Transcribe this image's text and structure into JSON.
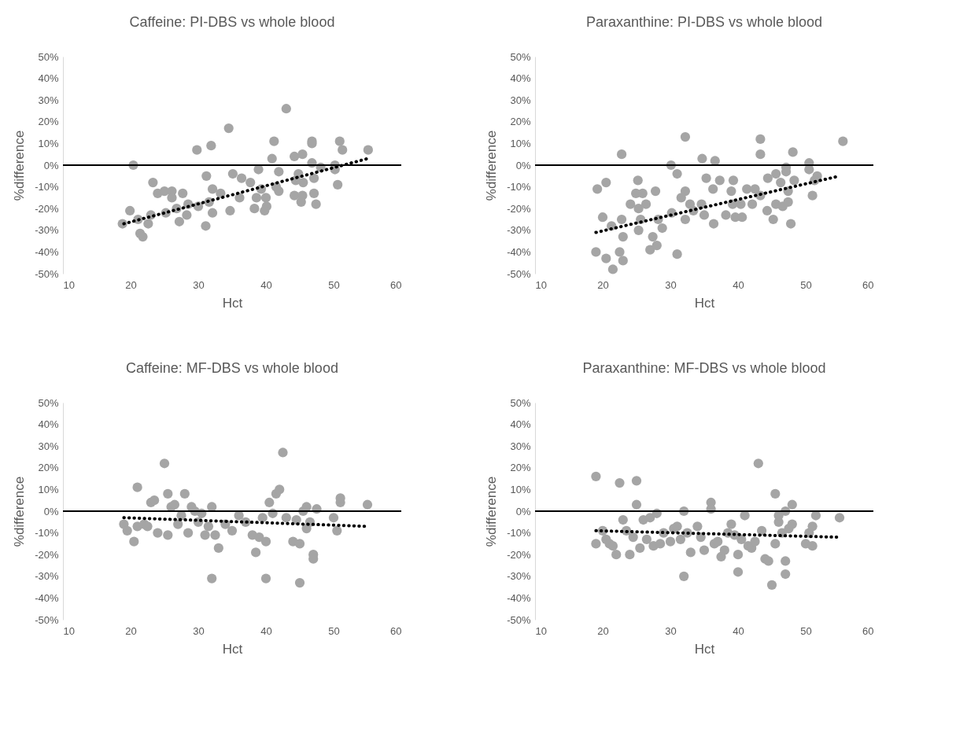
{
  "chart_data": [
    {
      "type": "scatter",
      "title": "Caffeine: PI-DBS vs whole blood",
      "xlabel": "Hct",
      "ylabel": "%difference",
      "xlim": [
        10,
        60
      ],
      "xticks": [
        10,
        20,
        30,
        40,
        50,
        60
      ],
      "ylim": [
        -50,
        50
      ],
      "yticks": [
        {
          "value": 50,
          "label": "50%"
        },
        {
          "value": 40,
          "label": "40%"
        },
        {
          "value": 30,
          "label": "30%"
        },
        {
          "value": 20,
          "label": "20%"
        },
        {
          "value": 10,
          "label": "10%"
        },
        {
          "value": 0,
          "label": "0%"
        },
        {
          "value": -10,
          "label": "-10%"
        },
        {
          "value": -20,
          "label": "-20%"
        },
        {
          "value": -30,
          "label": "-30%"
        },
        {
          "value": -40,
          "label": "-40%"
        },
        {
          "value": -50,
          "label": "-50%"
        }
      ],
      "grid": false,
      "ref_lines": [
        {
          "axis": "y",
          "value": 0,
          "color": "#000000"
        }
      ],
      "series": [
        {
          "color": "#a5a5a5",
          "marker": "circle",
          "x": [
            20.4,
            18.8,
            19.9,
            21.1,
            21.4,
            21.8,
            22.6,
            23,
            23.3,
            24,
            25,
            26.1,
            25.2,
            26.1,
            26.8,
            27.2,
            28.3,
            27.7,
            28.5,
            30,
            29.8,
            31.2,
            31.9,
            31.1,
            31.6,
            32.1,
            32.1,
            33.3,
            34.5,
            34.7,
            35.1,
            36.1,
            36.4,
            37.7,
            38.9,
            38.6,
            38.3,
            39.3,
            40,
            40.1,
            39.8,
            41.2,
            40.9,
            41.9,
            41.5,
            41.9,
            43,
            44.2,
            45.4,
            44.2,
            44.8,
            45.4,
            45.2,
            44.4,
            45.5,
            46.8,
            46.8,
            46.8,
            47.1,
            47.1,
            47.4,
            48.1,
            50.2,
            50.2,
            50.6,
            50.9,
            51.3,
            55.1
          ],
          "values": [
            0,
            -27,
            -21,
            -25,
            -31.5,
            -33,
            -27,
            -23,
            -8,
            -13,
            -12,
            -12,
            -22,
            -15,
            -20,
            -26,
            -23,
            -13,
            -18,
            -19,
            7,
            -5,
            9,
            -28,
            -17,
            -22,
            -11,
            -13,
            17,
            -21,
            -4,
            -15,
            -6,
            -8,
            -2,
            -15,
            -20,
            -11,
            -15,
            -19,
            -21,
            11,
            3,
            -3,
            -10,
            -12,
            26,
            4,
            5,
            -14,
            -4,
            -14,
            -17,
            -7,
            -8,
            11,
            10,
            1,
            -6,
            -13,
            -18,
            -1,
            -2,
            0,
            -9,
            11,
            7,
            7
          ]
        },
        {
          "type": "line",
          "color": "#000000",
          "line_style": "dotted",
          "x": [
            19,
            55
          ],
          "values": [
            -27,
            3
          ]
        }
      ]
    },
    {
      "type": "scatter",
      "title": "Paraxanthine: PI-DBS vs whole blood",
      "xlabel": "Hct",
      "ylabel": "%difference",
      "xlim": [
        10,
        60
      ],
      "xticks": [
        10,
        20,
        30,
        40,
        50,
        60
      ],
      "ylim": [
        -50,
        50
      ],
      "yticks": [
        {
          "value": 50,
          "label": "50%"
        },
        {
          "value": 40,
          "label": "40%"
        },
        {
          "value": 30,
          "label": "30%"
        },
        {
          "value": 20,
          "label": "20%"
        },
        {
          "value": 10,
          "label": "10%"
        },
        {
          "value": 0,
          "label": "0%"
        },
        {
          "value": -10,
          "label": "-10%"
        },
        {
          "value": -20,
          "label": "-20%"
        },
        {
          "value": -30,
          "label": "-30%"
        },
        {
          "value": -40,
          "label": "-40%"
        },
        {
          "value": -50,
          "label": "-50%"
        }
      ],
      "grid": false,
      "ref_lines": [
        {
          "axis": "y",
          "value": 0,
          "color": "#000000"
        }
      ],
      "series": [
        {
          "color": "#a5a5a5",
          "marker": "circle",
          "x": [
            19.2,
            20.5,
            20,
            21.3,
            22.8,
            22.8,
            23,
            24.1,
            25.2,
            24.9,
            25.9,
            26.4,
            25.3,
            25.6,
            25.3,
            27.8,
            28.2,
            28.8,
            27.4,
            30.1,
            31,
            32.2,
            32.2,
            31.6,
            30.2,
            32.2,
            32.9,
            33.4,
            34.7,
            34.6,
            35,
            35.3,
            36.6,
            36.4,
            36.3,
            37.3,
            38.2,
            39,
            39.2,
            39.3,
            39.6,
            40.6,
            40.4,
            41.3,
            42.5,
            42.1,
            43.3,
            43.3,
            43.3,
            44.4,
            44.3,
            45.2,
            45.6,
            46.3,
            45.6,
            46.6,
            47.4,
            47.4,
            47.1,
            47.1,
            47.8,
            48.1,
            48.3,
            50.5,
            50.5,
            51,
            51.7,
            51.3,
            55.5,
            19,
            20.5,
            21.5,
            22.5,
            23,
            27,
            28,
            31
          ],
          "values": [
            -11,
            -8,
            -24,
            -28,
            5,
            -25,
            -33,
            -18,
            -7,
            -13,
            -13,
            -18,
            -20,
            -25,
            -30,
            -12,
            -25,
            -29,
            -33,
            0,
            -4,
            13,
            -12,
            -15,
            -22,
            -25,
            -18,
            -21,
            3,
            -18,
            -23,
            -6,
            2,
            -27,
            -11,
            -7,
            -23,
            -12,
            -18,
            -7,
            -24,
            -24,
            -18,
            -11,
            -11,
            -18,
            -14,
            12,
            5,
            -6,
            -21,
            -25,
            -4,
            -8,
            -18,
            -19,
            -17,
            -12,
            -1,
            -3,
            -27,
            6,
            -7,
            1,
            -2,
            -14,
            -5,
            -7,
            11,
            -40,
            -43,
            -48,
            -40,
            -44,
            -39,
            -37,
            -41
          ]
        },
        {
          "type": "line",
          "color": "#000000",
          "line_style": "dotted",
          "x": [
            19,
            55
          ],
          "values": [
            -31,
            -5
          ]
        }
      ]
    },
    {
      "type": "scatter",
      "title": "Caffeine: MF-DBS vs whole blood",
      "xlabel": "Hct",
      "ylabel": "%difference",
      "xlim": [
        10,
        60
      ],
      "xticks": [
        10,
        20,
        30,
        40,
        50,
        60
      ],
      "ylim": [
        -50,
        50
      ],
      "yticks": [
        {
          "value": 50,
          "label": "50%"
        },
        {
          "value": 40,
          "label": "40%"
        },
        {
          "value": 30,
          "label": "30%"
        },
        {
          "value": 20,
          "label": "20%"
        },
        {
          "value": 10,
          "label": "10%"
        },
        {
          "value": 0,
          "label": "0%"
        },
        {
          "value": -10,
          "label": "-10%"
        },
        {
          "value": -20,
          "label": "-20%"
        },
        {
          "value": -30,
          "label": "-30%"
        },
        {
          "value": -40,
          "label": "-40%"
        },
        {
          "value": -50,
          "label": "-50%"
        }
      ],
      "grid": false,
      "ref_lines": [
        {
          "axis": "y",
          "value": 0,
          "color": "#000000"
        }
      ],
      "series": [
        {
          "color": "#a5a5a5",
          "marker": "circle",
          "x": [
            19,
            19.5,
            20.5,
            21,
            21,
            22,
            22.5,
            23,
            23.5,
            24,
            25,
            25.5,
            25.5,
            26,
            26.5,
            27,
            27.5,
            28,
            28.5,
            29,
            29.5,
            30,
            30.5,
            31,
            31.5,
            32,
            32,
            32.5,
            33,
            34,
            35,
            36,
            37,
            38,
            38.5,
            39,
            39.5,
            40,
            40,
            40.5,
            41,
            41.5,
            42,
            42.5,
            43,
            44,
            44.5,
            45,
            45,
            45.5,
            46,
            46,
            46.5,
            47,
            47,
            47.5,
            50,
            50.5,
            51,
            51,
            55
          ],
          "values": [
            -6,
            -9,
            -14,
            11,
            -7,
            -6,
            -7,
            4,
            5,
            -10,
            22,
            8,
            -11,
            2,
            3,
            -6,
            -2,
            8,
            -10,
            2,
            0,
            -5,
            -1,
            -11,
            -7,
            -31,
            2,
            -11,
            -17,
            -6,
            -9,
            -2,
            -5,
            -11,
            -19,
            -12,
            -3,
            -31,
            -14,
            4,
            -1,
            8,
            10,
            27,
            -3,
            -14,
            -4,
            -33,
            -15,
            0,
            2,
            -8,
            -5,
            -22,
            -20,
            1,
            -3,
            -9,
            4,
            6,
            3
          ]
        },
        {
          "type": "line",
          "color": "#000000",
          "line_style": "dotted",
          "x": [
            19,
            55
          ],
          "values": [
            -3,
            -7
          ]
        }
      ]
    },
    {
      "type": "scatter",
      "title": "Paraxanthine: MF-DBS vs whole blood",
      "xlabel": "Hct",
      "ylabel": "%difference",
      "xlim": [
        10,
        60
      ],
      "xticks": [
        10,
        20,
        30,
        40,
        50,
        60
      ],
      "ylim": [
        -50,
        50
      ],
      "yticks": [
        {
          "value": 50,
          "label": "50%"
        },
        {
          "value": 40,
          "label": "40%"
        },
        {
          "value": 30,
          "label": "30%"
        },
        {
          "value": 20,
          "label": "20%"
        },
        {
          "value": 10,
          "label": "10%"
        },
        {
          "value": 0,
          "label": "0%"
        },
        {
          "value": -10,
          "label": "-10%"
        },
        {
          "value": -20,
          "label": "-20%"
        },
        {
          "value": -30,
          "label": "-30%"
        },
        {
          "value": -40,
          "label": "-40%"
        },
        {
          "value": -50,
          "label": "-50%"
        }
      ],
      "grid": false,
      "ref_lines": [
        {
          "axis": "y",
          "value": 0,
          "color": "#000000"
        }
      ],
      "series": [
        {
          "color": "#a5a5a5",
          "marker": "circle",
          "x": [
            19,
            19,
            20,
            20.5,
            21,
            21.5,
            22,
            22.5,
            23,
            23.5,
            24,
            24.5,
            25,
            25,
            25.5,
            26,
            26.5,
            27,
            27.5,
            28,
            28.5,
            29,
            30,
            30.5,
            31,
            31.5,
            32,
            32,
            32.5,
            33,
            34,
            34.5,
            35,
            36,
            36,
            36.5,
            37,
            37.5,
            38,
            38.5,
            39,
            39.5,
            40,
            40,
            40.5,
            41,
            41.5,
            42,
            42.5,
            43,
            43.5,
            44,
            44.5,
            45,
            45.5,
            45.5,
            46,
            46,
            46.5,
            47,
            47,
            47,
            47.5,
            48,
            48,
            50,
            50.5,
            51,
            51,
            51.5,
            55
          ],
          "values": [
            16,
            -15,
            -9,
            -13,
            -15,
            -16,
            -20,
            13,
            -4,
            -9,
            -20,
            -12,
            14,
            3,
            -17,
            -4,
            -13,
            -3,
            -16,
            -1,
            -15,
            -10,
            -14,
            -8,
            -7,
            -13,
            0,
            -30,
            -10,
            -19,
            -7,
            -12,
            -18,
            4,
            1,
            -15,
            -14,
            -21,
            -18,
            -10,
            -6,
            -11,
            -20,
            -28,
            -13,
            -2,
            -16,
            -17,
            -14,
            22,
            -9,
            -22,
            -23,
            -34,
            -15,
            8,
            -5,
            -2,
            -10,
            0,
            -23,
            -29,
            -8,
            3,
            -6,
            -15,
            -10,
            -7,
            -16,
            -2,
            -3
          ]
        },
        {
          "type": "line",
          "color": "#000000",
          "line_style": "dotted",
          "x": [
            19,
            55
          ],
          "values": [
            -9,
            -12
          ]
        }
      ]
    }
  ]
}
